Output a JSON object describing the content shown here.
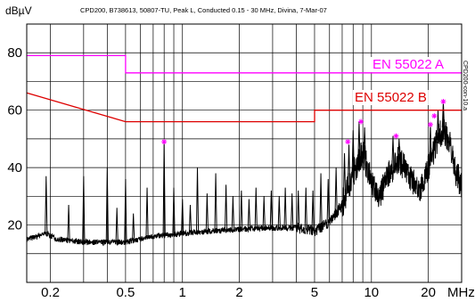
{
  "chart_data": {
    "type": "line",
    "title": "CPD200, B738613, 50807-TU, Peak L, Conducted 0.15 - 30 MHz, Divina, 7-Mar-07",
    "ylabel": "dBµV",
    "xlabel": "MHz",
    "xscale": "log",
    "xlim": [
      0.15,
      30
    ],
    "ylim": [
      0,
      90
    ],
    "grid": true,
    "x_ticks": [
      {
        "value": 0.2,
        "label": "0.2"
      },
      {
        "value": 0.5,
        "label": "0.5"
      },
      {
        "value": 1,
        "label": "1"
      },
      {
        "value": 2,
        "label": "2"
      },
      {
        "value": 5,
        "label": "5"
      },
      {
        "value": 10,
        "label": "10"
      },
      {
        "value": 20,
        "label": "20"
      }
    ],
    "y_ticks": [
      {
        "value": 20,
        "label": "20"
      },
      {
        "value": 40,
        "label": "40"
      },
      {
        "value": 60,
        "label": "60"
      },
      {
        "value": 80,
        "label": "80"
      }
    ],
    "side_code": "CPD200-con-10.a",
    "series": [
      {
        "name": "EN 55022 A",
        "color": "#ff00ff",
        "points": [
          [
            0.15,
            79
          ],
          [
            0.5,
            79
          ],
          [
            0.5,
            73
          ],
          [
            30,
            73
          ]
        ]
      },
      {
        "name": "EN 55022 B",
        "color": "#dd0000",
        "points": [
          [
            0.15,
            66
          ],
          [
            0.5,
            56
          ],
          [
            5,
            56
          ],
          [
            5,
            60
          ],
          [
            30,
            60
          ]
        ]
      },
      {
        "name": "",
        "color": "#000000",
        "noise_floor": [
          [
            0.15,
            15
          ],
          [
            0.17,
            16
          ],
          [
            0.19,
            17
          ],
          [
            0.22,
            15
          ],
          [
            0.3,
            14
          ],
          [
            0.5,
            14
          ],
          [
            0.7,
            16
          ],
          [
            1,
            17
          ],
          [
            1.5,
            18
          ],
          [
            2,
            18.5
          ],
          [
            3,
            19
          ],
          [
            4,
            19
          ],
          [
            5,
            18
          ],
          [
            6,
            21
          ],
          [
            7,
            27
          ],
          [
            8,
            38
          ],
          [
            9,
            45
          ],
          [
            10,
            35
          ],
          [
            11,
            30
          ],
          [
            12,
            36
          ],
          [
            13,
            40
          ],
          [
            14,
            43
          ],
          [
            16,
            37
          ],
          [
            18,
            32
          ],
          [
            20,
            40
          ],
          [
            22,
            48
          ],
          [
            24,
            54
          ],
          [
            26,
            48
          ],
          [
            28,
            38
          ],
          [
            30,
            34
          ]
        ],
        "peaks": [
          [
            0.19,
            37
          ],
          [
            0.25,
            27
          ],
          [
            0.3,
            37
          ],
          [
            0.4,
            40
          ],
          [
            0.45,
            26
          ],
          [
            0.5,
            36
          ],
          [
            0.55,
            24
          ],
          [
            0.65,
            33
          ],
          [
            0.8,
            49
          ],
          [
            0.9,
            33
          ],
          [
            1.0,
            29
          ],
          [
            1.1,
            27
          ],
          [
            1.2,
            40
          ],
          [
            1.35,
            31
          ],
          [
            1.5,
            38
          ],
          [
            1.7,
            34
          ],
          [
            1.85,
            30
          ],
          [
            2.05,
            32
          ],
          [
            2.25,
            29
          ],
          [
            2.45,
            33
          ],
          [
            2.7,
            30
          ],
          [
            2.95,
            32
          ],
          [
            3.25,
            30
          ],
          [
            3.5,
            33
          ],
          [
            3.8,
            31
          ],
          [
            4.1,
            32
          ],
          [
            4.5,
            33
          ],
          [
            4.9,
            32
          ],
          [
            5.4,
            38
          ],
          [
            5.9,
            36
          ],
          [
            6.5,
            40
          ],
          [
            7.2,
            45
          ],
          [
            7.6,
            48
          ],
          [
            8.0,
            53
          ],
          [
            8.6,
            56
          ],
          [
            9.2,
            54
          ],
          [
            13.0,
            51
          ],
          [
            14.0,
            50
          ],
          [
            20.5,
            55
          ],
          [
            22.5,
            60
          ],
          [
            24.0,
            63
          ]
        ]
      }
    ],
    "markers": {
      "color": "#ff00ff",
      "points": [
        [
          0.8,
          49
        ],
        [
          7.5,
          49
        ],
        [
          8.8,
          56
        ],
        [
          13.5,
          51
        ],
        [
          20.5,
          55
        ],
        [
          21.5,
          58
        ],
        [
          24.0,
          63
        ]
      ]
    },
    "legend_labels": [
      {
        "text": "EN 55022 A",
        "color": "#ff00ff"
      },
      {
        "text": "EN 55022 B",
        "color": "#dd0000"
      }
    ]
  }
}
